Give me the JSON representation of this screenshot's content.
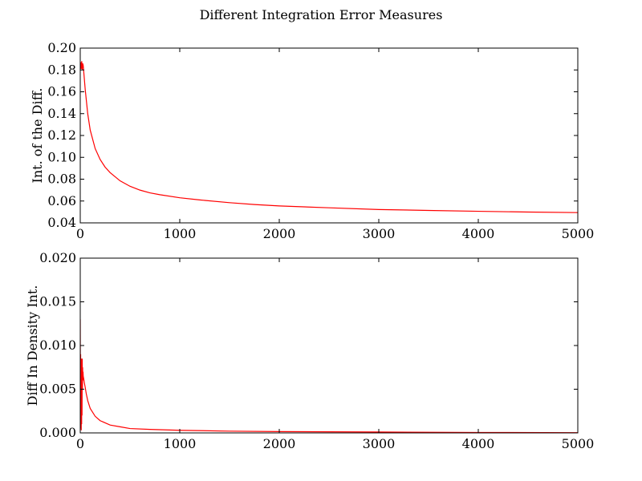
{
  "figure": {
    "title": "Different Integration Error Measures"
  },
  "chart_data": [
    {
      "type": "line",
      "title": "",
      "xlabel": "",
      "ylabel": "Int. of the Diff.",
      "xlim": [
        0,
        5000
      ],
      "ylim": [
        0.04,
        0.2
      ],
      "xticks": [
        0,
        1000,
        2000,
        3000,
        4000,
        5000
      ],
      "xtick_labels": [
        "0",
        "1000",
        "2000",
        "3000",
        "4000",
        "5000"
      ],
      "yticks": [
        0.04,
        0.06,
        0.08,
        0.1,
        0.12,
        0.14,
        0.16,
        0.18,
        0.2
      ],
      "ytick_labels": [
        "0.04",
        "0.06",
        "0.08",
        "0.10",
        "0.12",
        "0.14",
        "0.16",
        "0.18",
        "0.20"
      ],
      "grid": false,
      "series": [
        {
          "color": "#ff0000",
          "x": [
            0,
            5,
            10,
            15,
            20,
            25,
            30,
            40,
            50,
            75,
            100,
            150,
            200,
            250,
            300,
            400,
            500,
            600,
            700,
            800,
            1000,
            1200,
            1500,
            1750,
            2000,
            2500,
            3000,
            3500,
            4000,
            4500,
            5000
          ],
          "y": [
            0.18,
            0.187,
            0.181,
            0.188,
            0.18,
            0.186,
            0.184,
            0.173,
            0.162,
            0.14,
            0.125,
            0.108,
            0.098,
            0.091,
            0.086,
            0.0785,
            0.0735,
            0.07,
            0.0675,
            0.0658,
            0.063,
            0.061,
            0.0585,
            0.0568,
            0.0555,
            0.0538,
            0.0522,
            0.0514,
            0.0506,
            0.0499,
            0.0494
          ]
        }
      ]
    },
    {
      "type": "line",
      "title": "",
      "xlabel": "",
      "ylabel": "Diff In Density Int.",
      "xlim": [
        0,
        5000
      ],
      "ylim": [
        0.0,
        0.02
      ],
      "xticks": [
        0,
        1000,
        2000,
        3000,
        4000,
        5000
      ],
      "xtick_labels": [
        "0",
        "1000",
        "2000",
        "3000",
        "4000",
        "5000"
      ],
      "yticks": [
        0.0,
        0.005,
        0.01,
        0.015,
        0.02
      ],
      "ytick_labels": [
        "0.000",
        "0.005",
        "0.010",
        "0.015",
        "0.020"
      ],
      "grid": false,
      "series": [
        {
          "color": "#ff0000",
          "x": [
            0,
            2,
            4,
            6,
            8,
            10,
            12,
            14,
            16,
            18,
            20,
            22,
            24,
            26,
            28,
            30,
            35,
            40,
            50,
            60,
            75,
            100,
            150,
            200,
            300,
            400,
            500,
            700,
            1000,
            1500,
            2000,
            3000,
            4000,
            5000
          ],
          "y": [
            0.013,
            0.001,
            0.009,
            0.0005,
            0.008,
            0.0003,
            0.0085,
            0.001,
            0.0075,
            0.002,
            0.0085,
            0.005,
            0.0075,
            0.006,
            0.007,
            0.0065,
            0.0062,
            0.0058,
            0.0052,
            0.0045,
            0.0037,
            0.0028,
            0.0019,
            0.0014,
            0.0009,
            0.0007,
            0.0005,
            0.0004,
            0.0003,
            0.0002,
            0.00015,
            0.0001,
            5e-05,
            3e-05
          ]
        }
      ]
    }
  ]
}
